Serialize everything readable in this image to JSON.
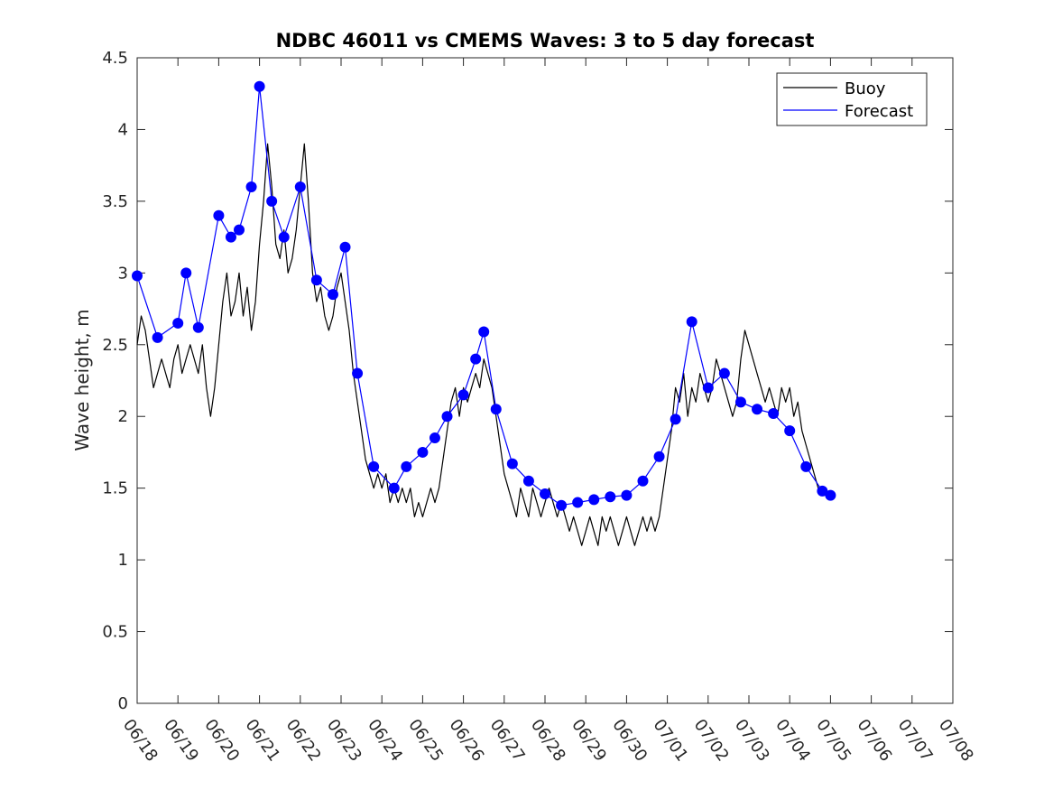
{
  "chart_data": {
    "type": "line",
    "title": "NDBC 46011 vs CMEMS Waves: 3 to 5 day forecast",
    "xlabel": "",
    "ylabel": "Wave height, m",
    "xlim": [
      0,
      20
    ],
    "ylim": [
      0,
      4.5
    ],
    "x_tick_labels": [
      "06/18",
      "06/19",
      "06/20",
      "06/21",
      "06/22",
      "06/23",
      "06/24",
      "06/25",
      "06/26",
      "06/27",
      "06/28",
      "06/29",
      "06/30",
      "07/01",
      "07/02",
      "07/03",
      "07/04",
      "07/05",
      "07/06",
      "07/07",
      "07/08"
    ],
    "y_ticks": [
      0,
      0.5,
      1,
      1.5,
      2,
      2.5,
      3,
      3.5,
      4,
      4.5
    ],
    "y_tick_labels": [
      "0",
      "0.5",
      "1",
      "1.5",
      "2",
      "2.5",
      "3",
      "3.5",
      "4",
      "4.5"
    ],
    "grid": false,
    "legend_position": "top-right",
    "legend": [
      {
        "label": "Buoy",
        "color": "#000000"
      },
      {
        "label": "Forecast",
        "color": "#0000ff"
      }
    ],
    "series": [
      {
        "name": "Buoy",
        "color": "#000000",
        "points": [
          [
            0.0,
            2.5
          ],
          [
            0.1,
            2.7
          ],
          [
            0.2,
            2.6
          ],
          [
            0.3,
            2.4
          ],
          [
            0.4,
            2.2
          ],
          [
            0.5,
            2.3
          ],
          [
            0.6,
            2.4
          ],
          [
            0.7,
            2.3
          ],
          [
            0.8,
            2.2
          ],
          [
            0.9,
            2.4
          ],
          [
            1.0,
            2.5
          ],
          [
            1.1,
            2.3
          ],
          [
            1.2,
            2.4
          ],
          [
            1.3,
            2.5
          ],
          [
            1.4,
            2.4
          ],
          [
            1.5,
            2.3
          ],
          [
            1.6,
            2.5
          ],
          [
            1.7,
            2.2
          ],
          [
            1.8,
            2.0
          ],
          [
            1.9,
            2.2
          ],
          [
            2.0,
            2.5
          ],
          [
            2.1,
            2.8
          ],
          [
            2.2,
            3.0
          ],
          [
            2.3,
            2.7
          ],
          [
            2.4,
            2.8
          ],
          [
            2.5,
            3.0
          ],
          [
            2.6,
            2.7
          ],
          [
            2.7,
            2.9
          ],
          [
            2.8,
            2.6
          ],
          [
            2.9,
            2.8
          ],
          [
            3.0,
            3.2
          ],
          [
            3.1,
            3.5
          ],
          [
            3.2,
            3.9
          ],
          [
            3.3,
            3.6
          ],
          [
            3.4,
            3.2
          ],
          [
            3.5,
            3.1
          ],
          [
            3.6,
            3.3
          ],
          [
            3.7,
            3.0
          ],
          [
            3.8,
            3.1
          ],
          [
            3.9,
            3.3
          ],
          [
            4.0,
            3.6
          ],
          [
            4.1,
            3.9
          ],
          [
            4.2,
            3.5
          ],
          [
            4.3,
            3.0
          ],
          [
            4.4,
            2.8
          ],
          [
            4.5,
            2.9
          ],
          [
            4.6,
            2.7
          ],
          [
            4.7,
            2.6
          ],
          [
            4.8,
            2.7
          ],
          [
            4.9,
            2.9
          ],
          [
            5.0,
            3.0
          ],
          [
            5.1,
            2.8
          ],
          [
            5.2,
            2.6
          ],
          [
            5.3,
            2.3
          ],
          [
            5.4,
            2.1
          ],
          [
            5.5,
            1.9
          ],
          [
            5.6,
            1.7
          ],
          [
            5.7,
            1.6
          ],
          [
            5.8,
            1.5
          ],
          [
            5.9,
            1.6
          ],
          [
            6.0,
            1.5
          ],
          [
            6.1,
            1.6
          ],
          [
            6.2,
            1.4
          ],
          [
            6.3,
            1.5
          ],
          [
            6.4,
            1.4
          ],
          [
            6.5,
            1.5
          ],
          [
            6.6,
            1.4
          ],
          [
            6.7,
            1.5
          ],
          [
            6.8,
            1.3
          ],
          [
            6.9,
            1.4
          ],
          [
            7.0,
            1.3
          ],
          [
            7.1,
            1.4
          ],
          [
            7.2,
            1.5
          ],
          [
            7.3,
            1.4
          ],
          [
            7.4,
            1.5
          ],
          [
            7.5,
            1.7
          ],
          [
            7.6,
            1.9
          ],
          [
            7.7,
            2.1
          ],
          [
            7.8,
            2.2
          ],
          [
            7.9,
            2.0
          ],
          [
            8.0,
            2.2
          ],
          [
            8.1,
            2.1
          ],
          [
            8.2,
            2.2
          ],
          [
            8.3,
            2.3
          ],
          [
            8.4,
            2.2
          ],
          [
            8.5,
            2.4
          ],
          [
            8.6,
            2.3
          ],
          [
            8.7,
            2.2
          ],
          [
            8.8,
            2.0
          ],
          [
            8.9,
            1.8
          ],
          [
            9.0,
            1.6
          ],
          [
            9.1,
            1.5
          ],
          [
            9.2,
            1.4
          ],
          [
            9.3,
            1.3
          ],
          [
            9.4,
            1.5
          ],
          [
            9.5,
            1.4
          ],
          [
            9.6,
            1.3
          ],
          [
            9.7,
            1.5
          ],
          [
            9.8,
            1.4
          ],
          [
            9.9,
            1.3
          ],
          [
            10.0,
            1.4
          ],
          [
            10.1,
            1.5
          ],
          [
            10.2,
            1.4
          ],
          [
            10.3,
            1.3
          ],
          [
            10.4,
            1.4
          ],
          [
            10.5,
            1.3
          ],
          [
            10.6,
            1.2
          ],
          [
            10.7,
            1.3
          ],
          [
            10.8,
            1.2
          ],
          [
            10.9,
            1.1
          ],
          [
            11.0,
            1.2
          ],
          [
            11.1,
            1.3
          ],
          [
            11.2,
            1.2
          ],
          [
            11.3,
            1.1
          ],
          [
            11.4,
            1.3
          ],
          [
            11.5,
            1.2
          ],
          [
            11.6,
            1.3
          ],
          [
            11.7,
            1.2
          ],
          [
            11.8,
            1.1
          ],
          [
            11.9,
            1.2
          ],
          [
            12.0,
            1.3
          ],
          [
            12.1,
            1.2
          ],
          [
            12.2,
            1.1
          ],
          [
            12.3,
            1.2
          ],
          [
            12.4,
            1.3
          ],
          [
            12.5,
            1.2
          ],
          [
            12.6,
            1.3
          ],
          [
            12.7,
            1.2
          ],
          [
            12.8,
            1.3
          ],
          [
            12.9,
            1.5
          ],
          [
            13.0,
            1.7
          ],
          [
            13.1,
            1.9
          ],
          [
            13.2,
            2.2
          ],
          [
            13.3,
            2.1
          ],
          [
            13.4,
            2.3
          ],
          [
            13.5,
            2.0
          ],
          [
            13.6,
            2.2
          ],
          [
            13.7,
            2.1
          ],
          [
            13.8,
            2.3
          ],
          [
            13.9,
            2.2
          ],
          [
            14.0,
            2.1
          ],
          [
            14.1,
            2.2
          ],
          [
            14.2,
            2.4
          ],
          [
            14.3,
            2.3
          ],
          [
            14.4,
            2.2
          ],
          [
            14.5,
            2.1
          ],
          [
            14.6,
            2.0
          ],
          [
            14.7,
            2.1
          ],
          [
            14.8,
            2.4
          ],
          [
            14.9,
            2.6
          ],
          [
            15.0,
            2.5
          ],
          [
            15.1,
            2.4
          ],
          [
            15.2,
            2.3
          ],
          [
            15.3,
            2.2
          ],
          [
            15.4,
            2.1
          ],
          [
            15.5,
            2.2
          ],
          [
            15.6,
            2.1
          ],
          [
            15.7,
            2.0
          ],
          [
            15.8,
            2.2
          ],
          [
            15.9,
            2.1
          ],
          [
            16.0,
            2.2
          ],
          [
            16.1,
            2.0
          ],
          [
            16.2,
            2.1
          ],
          [
            16.3,
            1.9
          ],
          [
            16.4,
            1.8
          ],
          [
            16.5,
            1.7
          ],
          [
            16.6,
            1.6
          ],
          [
            16.7,
            1.5
          ],
          [
            16.8,
            1.5
          ],
          [
            16.9,
            1.45
          ],
          [
            17.0,
            1.45
          ]
        ]
      },
      {
        "name": "Forecast",
        "color": "#0000ff",
        "points": [
          [
            0.0,
            2.98
          ],
          [
            0.5,
            2.55
          ],
          [
            1.0,
            2.65
          ],
          [
            1.2,
            3.0
          ],
          [
            1.5,
            2.62
          ],
          [
            2.0,
            3.4
          ],
          [
            2.3,
            3.25
          ],
          [
            2.5,
            3.3
          ],
          [
            2.8,
            3.6
          ],
          [
            3.0,
            4.3
          ],
          [
            3.3,
            3.5
          ],
          [
            3.6,
            3.25
          ],
          [
            4.0,
            3.6
          ],
          [
            4.4,
            2.95
          ],
          [
            4.8,
            2.85
          ],
          [
            5.1,
            3.18
          ],
          [
            5.4,
            2.3
          ],
          [
            5.8,
            1.65
          ],
          [
            6.3,
            1.5
          ],
          [
            6.6,
            1.65
          ],
          [
            7.0,
            1.75
          ],
          [
            7.3,
            1.85
          ],
          [
            7.6,
            2.0
          ],
          [
            8.0,
            2.15
          ],
          [
            8.3,
            2.4
          ],
          [
            8.5,
            2.59
          ],
          [
            8.8,
            2.05
          ],
          [
            9.2,
            1.67
          ],
          [
            9.6,
            1.55
          ],
          [
            10.0,
            1.46
          ],
          [
            10.4,
            1.38
          ],
          [
            10.8,
            1.4
          ],
          [
            11.2,
            1.42
          ],
          [
            11.6,
            1.44
          ],
          [
            12.0,
            1.45
          ],
          [
            12.4,
            1.55
          ],
          [
            12.8,
            1.72
          ],
          [
            13.2,
            1.98
          ],
          [
            13.6,
            2.66
          ],
          [
            14.0,
            2.2
          ],
          [
            14.4,
            2.3
          ],
          [
            14.8,
            2.1
          ],
          [
            15.2,
            2.05
          ],
          [
            15.6,
            2.02
          ],
          [
            16.0,
            1.9
          ],
          [
            16.4,
            1.65
          ],
          [
            16.8,
            1.48
          ],
          [
            17.0,
            1.45
          ]
        ]
      }
    ]
  }
}
